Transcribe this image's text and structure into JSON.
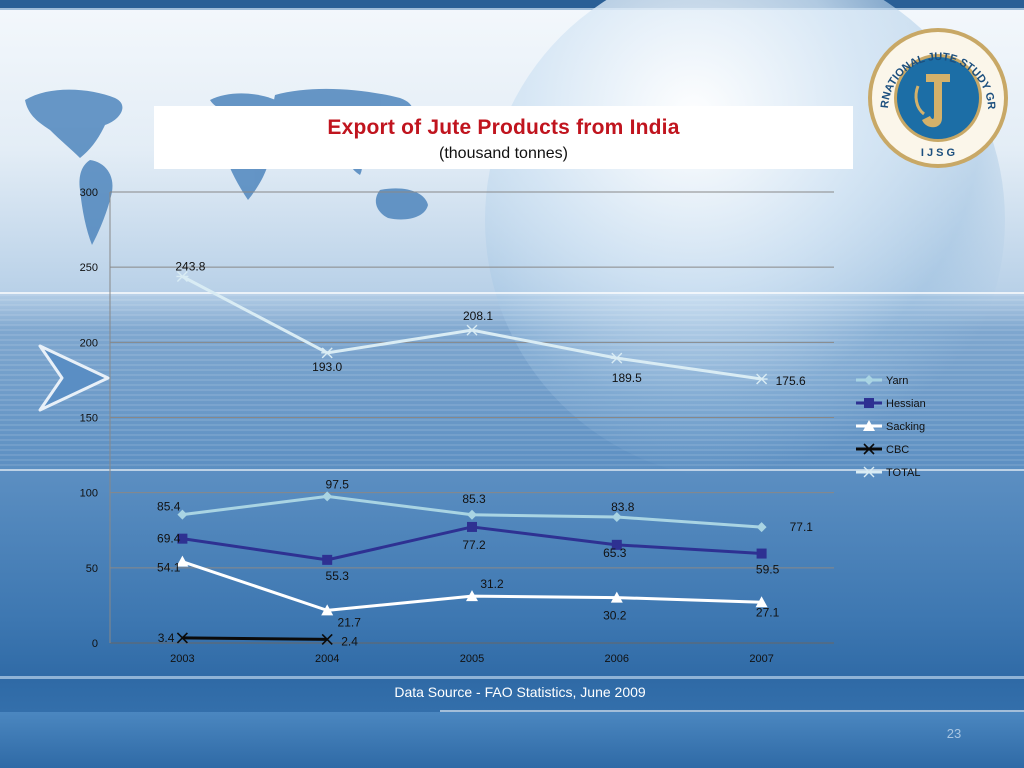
{
  "slide": {
    "data_source": "Data Source - FAO Statistics, June 2009",
    "page_number": "23",
    "logo_ring_text": "INTERNATIONAL JUTE STUDY GROUP",
    "logo_bottom_text": "I J S G"
  },
  "chart_data": {
    "type": "line",
    "title": "Export of Jute Products from India",
    "subtitle": "(thousand tonnes)",
    "xlabel": "",
    "ylabel": "",
    "categories": [
      "2003",
      "2004",
      "2005",
      "2006",
      "2007"
    ],
    "ylim": [
      0,
      300
    ],
    "yticks": [
      0,
      50,
      100,
      150,
      200,
      250,
      300
    ],
    "grid": true,
    "legend_position": "right",
    "series": [
      {
        "name": "Yarn",
        "color": "#a9d4e3",
        "marker": "diamond",
        "values": [
          85.4,
          97.5,
          85.3,
          83.8,
          77.1
        ]
      },
      {
        "name": "Hessian",
        "color": "#2e3192",
        "marker": "square",
        "values": [
          69.4,
          55.3,
          77.2,
          65.3,
          59.5
        ]
      },
      {
        "name": "Sacking",
        "color": "#ffffff",
        "marker": "triangle",
        "values": [
          54.1,
          21.7,
          31.2,
          30.2,
          27.1
        ]
      },
      {
        "name": "CBC",
        "color": "#0a0a0a",
        "marker": "x",
        "values": [
          3.4,
          2.4,
          null,
          null,
          null
        ]
      },
      {
        "name": "TOTAL",
        "color": "#d9ecf4",
        "marker": "star",
        "values": [
          243.8,
          193.0,
          208.1,
          189.5,
          175.6
        ]
      }
    ],
    "data_labels": {
      "Yarn": [
        "85.4",
        "97.5",
        "85.3",
        "83.8",
        "77.1"
      ],
      "Hessian": [
        "69.4",
        "55.3",
        "77.2",
        "65.3",
        "59.5"
      ],
      "Sacking": [
        "54.1",
        "21.7",
        "31.2",
        "30.2",
        "27.1"
      ],
      "CBC": [
        "3.4",
        "2.4",
        null,
        null,
        null
      ],
      "TOTAL": [
        "243.8",
        "193.0",
        "208.1",
        "189.5",
        "175.6"
      ]
    }
  }
}
